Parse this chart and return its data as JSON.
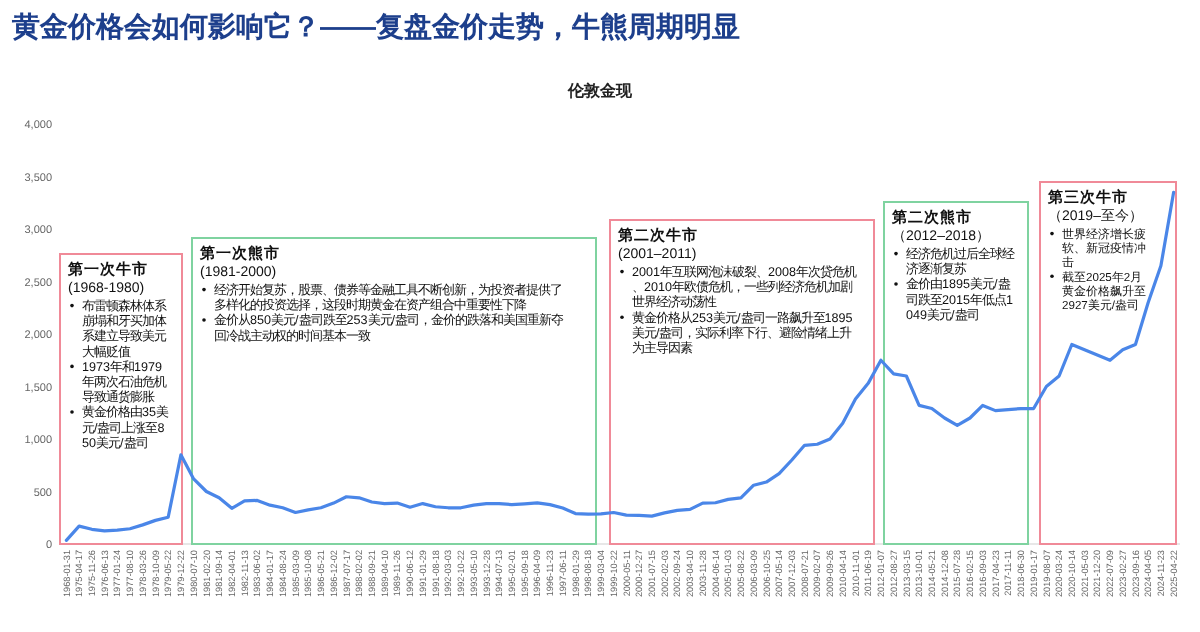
{
  "chart_data": {
    "type": "line",
    "title": "黄金价格会如何影响它？——复盘金价走势，牛熊周期明显",
    "subtitle": "伦敦金现",
    "categories": [
      "1968-01-31",
      "1975-04-17",
      "1975-11-26",
      "1976-06-13",
      "1977-01-24",
      "1977-08-10",
      "1978-03-26",
      "1978-10-09",
      "1979-05-22",
      "1979-12-22",
      "1980-07-10",
      "1981-02-20",
      "1981-09-14",
      "1982-04-01",
      "1982-11-13",
      "1983-06-02",
      "1984-01-17",
      "1984-08-24",
      "1985-03-09",
      "1985-10-08",
      "1986-05-21",
      "1986-12-02",
      "1987-07-17",
      "1988-02-02",
      "1988-09-21",
      "1989-04-10",
      "1989-11-26",
      "1990-06-12",
      "1991-01-29",
      "1991-08-18",
      "1992-03-03",
      "1992-10-22",
      "1993-05-10",
      "1993-12-28",
      "1994-07-13",
      "1995-02-01",
      "1995-09-18",
      "1996-04-09",
      "1996-11-23",
      "1997-06-11",
      "1998-01-29",
      "1998-08-18",
      "1999-03-04",
      "1999-10-22",
      "2000-05-11",
      "2000-12-27",
      "2001-07-15",
      "2002-02-03",
      "2002-09-24",
      "2003-04-10",
      "2003-11-28",
      "2004-06-14",
      "2005-01-03",
      "2005-08-22",
      "2006-03-09",
      "2006-10-25",
      "2007-05-14",
      "2007-12-03",
      "2008-07-21",
      "2009-02-07",
      "2009-09-26",
      "2010-04-14",
      "2010-11-01",
      "2011-06-19",
      "2012-01-07",
      "2012-08-27",
      "2013-03-15",
      "2013-10-01",
      "2014-05-21",
      "2014-12-08",
      "2015-07-28",
      "2016-02-15",
      "2016-09-03",
      "2017-04-23",
      "2017-11-11",
      "2018-06-30",
      "2019-01-17",
      "2019-08-07",
      "2020-03-24",
      "2020-10-14",
      "2021-05-03",
      "2021-12-20",
      "2022-07-09",
      "2023-02-27",
      "2023-09-16",
      "2024-04-05",
      "2024-11-23",
      "2025-04-22"
    ],
    "series": [
      {
        "color": "#4a86e8",
        "values": [
          35,
          170,
          140,
          125,
          132,
          145,
          182,
          225,
          255,
          850,
          620,
          500,
          440,
          340,
          410,
          415,
          370,
          345,
          300,
          325,
          345,
          390,
          450,
          440,
          400,
          385,
          390,
          350,
          385,
          355,
          345,
          345,
          370,
          385,
          385,
          375,
          383,
          392,
          375,
          342,
          290,
          285,
          287,
          300,
          275,
          272,
          266,
          296,
          320,
          330,
          390,
          393,
          425,
          440,
          560,
          590,
          670,
          800,
          940,
          950,
          1000,
          1150,
          1380,
          1530,
          1750,
          1620,
          1600,
          1320,
          1290,
          1200,
          1130,
          1200,
          1320,
          1270,
          1280,
          1290,
          1290,
          1500,
          1600,
          1900,
          1850,
          1800,
          1750,
          1850,
          1900,
          2300,
          2650,
          3350
        ]
      }
    ],
    "ylim": [
      0,
      4000
    ],
    "yticks": [
      0,
      500,
      {
        "value": 1000,
        "label": "1,000"
      },
      {
        "value": 1500,
        "label": "1,500"
      },
      {
        "value": 2000,
        "label": "2,000"
      },
      {
        "value": 2500,
        "label": "2,500"
      },
      {
        "value": 3000,
        "label": "3,000"
      },
      {
        "value": 3500,
        "label": "3,500"
      },
      {
        "value": 4000,
        "label": "4,000"
      }
    ],
    "grid": false,
    "annotations": [
      "第一次牛市",
      "(1968-1980)",
      "布雷顿森林体系崩塌和牙买加体系建立导致美元大幅贬值",
      "1973年和1979年两次石油危机导致通货膨胀",
      "黄金价格由35美元/盎司上涨至850美元/盎司",
      "第一次熊市",
      "(1981-2000)",
      "经济开始复苏，股票、债券等金融工具不断创新，为投资者提供了多样化的投资选择，这段时期黄金在资产组合中重要性下降",
      "金价从850美元/盎司跌至253美元/盎司，金价的跌落和美国重新夺回冷战主动权的时间基本一致",
      "第二次牛市",
      "(2001–2011)",
      "2001年互联网泡沫破裂、2008年次贷危机、2010年欧债危机，一些列经济危机加剧世界经济动荡性",
      "黄金价格从253美元/盎司一路飙升至1895美元/盎司，实际利率下行、避险情绪上升为主导因素",
      "第二次熊市",
      "（2012–2018）",
      "经济危机过后全球经济逐渐复苏",
      "金价由1895美元/盎司跌至2015年低点1049美元/盎司",
      "第三次牛市",
      "（2019–至今）",
      "世界经济增长疲软、新冠疫情冲击",
      "截至2025年2月黄金价格飙升至2927美元/盎司"
    ]
  }
}
